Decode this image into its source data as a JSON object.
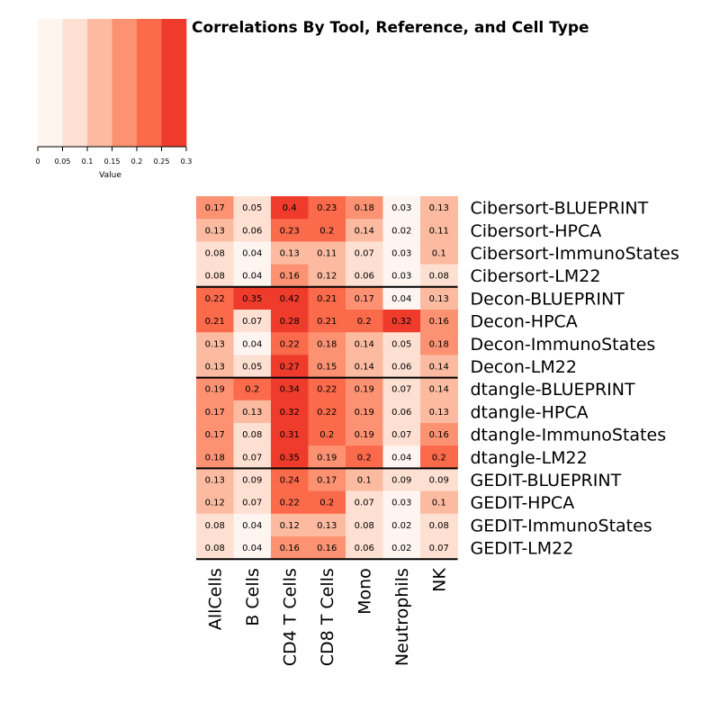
{
  "chart_data": {
    "type": "heatmap",
    "title": "Correlations By Tool, Reference, and Cell Type",
    "rows": [
      "Cibersort-BLUEPRINT",
      "Cibersort-HPCA",
      "Cibersort-ImmunoStates",
      "Cibersort-LM22",
      "Decon-BLUEPRINT",
      "Decon-HPCA",
      "Decon-ImmunoStates",
      "Decon-LM22",
      "dtangle-BLUEPRINT",
      "dtangle-HPCA",
      "dtangle-ImmunoStates",
      "dtangle-LM22",
      "GEDIT-BLUEPRINT",
      "GEDIT-HPCA",
      "GEDIT-ImmunoStates",
      "GEDIT-LM22"
    ],
    "columns": [
      "AllCells",
      "B Cells",
      "CD4 T Cells",
      "CD8 T Cells",
      "Mono",
      "Neutrophils",
      "NK"
    ],
    "values": [
      [
        0.17,
        0.05,
        0.4,
        0.23,
        0.18,
        0.03,
        0.13
      ],
      [
        0.13,
        0.06,
        0.23,
        0.2,
        0.14,
        0.02,
        0.11
      ],
      [
        0.08,
        0.04,
        0.13,
        0.11,
        0.07,
        0.03,
        0.1
      ],
      [
        0.08,
        0.04,
        0.16,
        0.12,
        0.06,
        0.03,
        0.08
      ],
      [
        0.22,
        0.35,
        0.42,
        0.21,
        0.17,
        0.04,
        0.13
      ],
      [
        0.21,
        0.07,
        0.28,
        0.21,
        0.2,
        0.32,
        0.16
      ],
      [
        0.13,
        0.04,
        0.22,
        0.18,
        0.14,
        0.05,
        0.18
      ],
      [
        0.13,
        0.05,
        0.27,
        0.15,
        0.14,
        0.06,
        0.14
      ],
      [
        0.19,
        0.2,
        0.34,
        0.22,
        0.19,
        0.07,
        0.14
      ],
      [
        0.17,
        0.13,
        0.32,
        0.22,
        0.19,
        0.06,
        0.13
      ],
      [
        0.17,
        0.08,
        0.31,
        0.2,
        0.19,
        0.07,
        0.16
      ],
      [
        0.18,
        0.07,
        0.35,
        0.19,
        0.2,
        0.04,
        0.2
      ],
      [
        0.13,
        0.09,
        0.24,
        0.17,
        0.1,
        0.09,
        0.09
      ],
      [
        0.12,
        0.07,
        0.22,
        0.2,
        0.07,
        0.03,
        0.1
      ],
      [
        0.08,
        0.04,
        0.12,
        0.13,
        0.08,
        0.02,
        0.08
      ],
      [
        0.08,
        0.04,
        0.16,
        0.16,
        0.06,
        0.02,
        0.07
      ]
    ],
    "group_separators_after_rows": [
      3,
      7,
      11,
      15
    ],
    "color_breaks": [
      0,
      0.05,
      0.1,
      0.15,
      0.2,
      0.25,
      0.3
    ],
    "colors": [
      "#FFF5F0",
      "#FEE0D2",
      "#FCBBA1",
      "#FC9272",
      "#FB6A4A",
      "#EF3B2C"
    ],
    "color_key": {
      "ticks": [
        "0",
        "0.05",
        "0.1",
        "0.15",
        "0.2",
        "0.25",
        "0.3"
      ],
      "label": "Value"
    },
    "legend": "top-left"
  }
}
